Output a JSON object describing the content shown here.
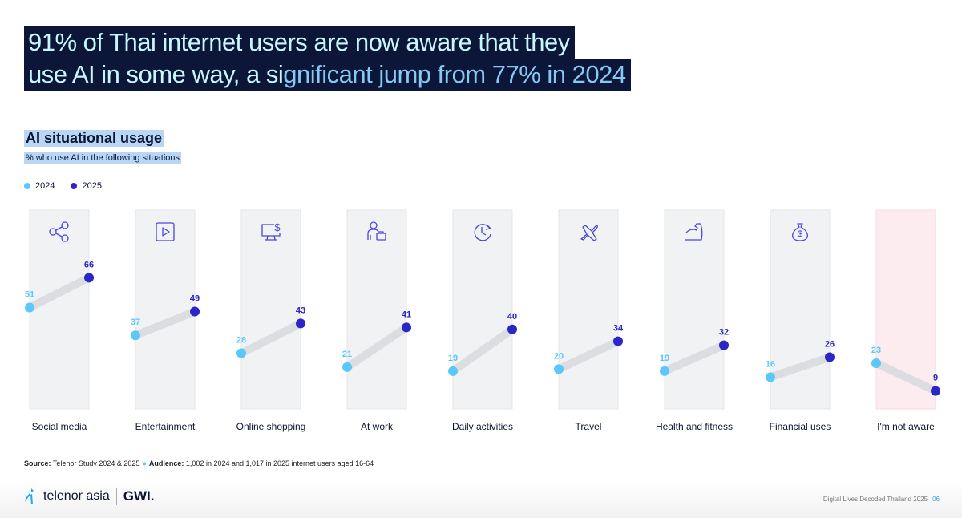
{
  "headline": {
    "line1": "91% of Thai internet users are now aware that they",
    "line2_a": "use AI in some way, a si",
    "line2_b": "gnificant jump from 77% in 2024"
  },
  "colors": {
    "c2024": "#5ac8fa",
    "c2025": "#2a26c8",
    "column_bg": "#f1f2f4",
    "column_alt_bg": "#fcecef",
    "connector": "#dcdde1"
  },
  "chart_data": {
    "type": "line",
    "title": "AI situational usage",
    "subtitle": "% who use AI in the following situations",
    "ylim": [
      0,
      100
    ],
    "categories": [
      "Social media",
      "Entertainment",
      "Online shopping",
      "At work",
      "Daily activities",
      "Travel",
      "Health and fitness",
      "Financial uses",
      "I'm not aware"
    ],
    "icons": [
      "share-icon",
      "play-icon",
      "monitor-dollar-icon",
      "person-briefcase-icon",
      "clock-refresh-icon",
      "airplane-icon",
      "flexed-arm-icon",
      "money-bag-icon",
      ""
    ],
    "series": [
      {
        "name": "2024",
        "values": [
          51,
          37,
          28,
          21,
          19,
          20,
          19,
          16,
          23
        ]
      },
      {
        "name": "2025",
        "values": [
          66,
          49,
          43,
          41,
          40,
          34,
          32,
          26,
          9
        ]
      }
    ]
  },
  "source": {
    "source_label": "Source:",
    "source_text": "Telenor Study 2024 & 2025",
    "audience_label": "Audience:",
    "audience_text": "1,002 in 2024 and 1,017 in 2025 internet users aged 16-64"
  },
  "footer": {
    "logo1": "telenor asia",
    "logo2": "GWI.",
    "doc": "Digital Lives Decoded Thailand 2025",
    "page": "06"
  }
}
